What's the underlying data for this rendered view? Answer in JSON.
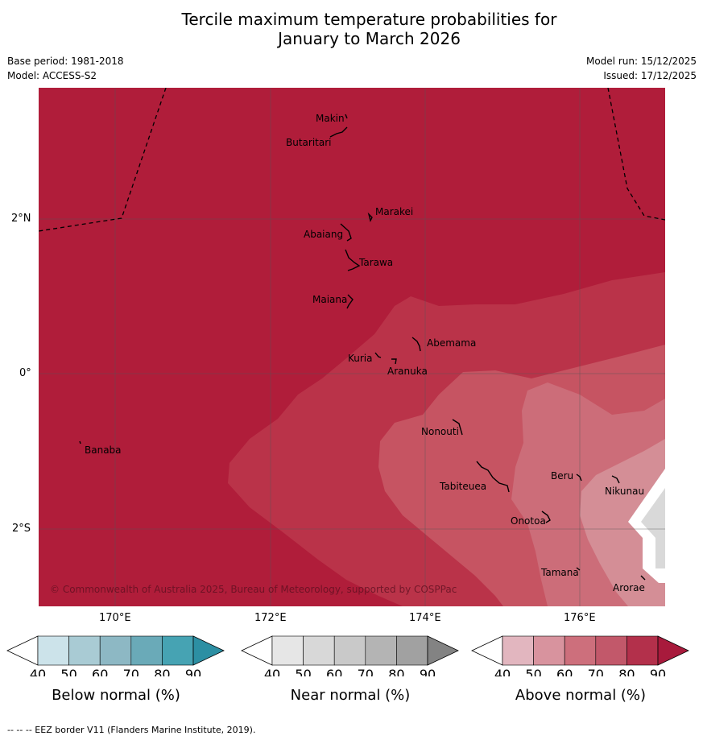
{
  "title": {
    "line1": "Tercile maximum temperature probabilities for",
    "line2": "January to March 2026"
  },
  "meta": {
    "base_period": "Base period: 1981-2018",
    "model": "Model: ACCESS-S2",
    "model_run": "Model run: 15/12/2025",
    "issued": "Issued: 17/12/2025"
  },
  "axes": {
    "lat_labels": [
      "2°N",
      "0°",
      "2°S"
    ],
    "lon_labels": [
      "170°E",
      "172°E",
      "174°E",
      "176°E"
    ]
  },
  "places": [
    "Makin",
    "Butaritari",
    "Marakei",
    "Abaiang",
    "Tarawa",
    "Maiana",
    "Abemama",
    "Kuria",
    "Aranuka",
    "Nonouti",
    "Banaba",
    "Beru",
    "Nikunau",
    "Tabiteuea",
    "Onotoa",
    "Tamana",
    "Arorae"
  ],
  "copyright": "© Commonwealth of Australia 2025, Bureau of Meteorology, supported by COSPPac",
  "colorbars": [
    {
      "label": "Below normal (%)",
      "ticks": [
        "40",
        "50",
        "60",
        "70",
        "80",
        "90"
      ],
      "colors": [
        "#cce3ea",
        "#a9cbd4",
        "#8db8c4",
        "#6aaab8",
        "#46a3b3",
        "#2c8fa3"
      ]
    },
    {
      "label": "Near normal (%)",
      "ticks": [
        "40",
        "50",
        "60",
        "70",
        "80",
        "90"
      ],
      "colors": [
        "#e6e6e6",
        "#d8d8d8",
        "#c9c9c9",
        "#b4b4b4",
        "#a1a1a1",
        "#838383"
      ]
    },
    {
      "label": "Above normal (%)",
      "ticks": [
        "40",
        "50",
        "60",
        "70",
        "80",
        "90"
      ],
      "colors": [
        "#e2b6bf",
        "#d8939e",
        "#cd6f7c",
        "#c2586a",
        "#b3304b",
        "#a81a3c"
      ]
    }
  ],
  "colors": {
    "above_90": "#b01d3a",
    "above_80": "#ba3349",
    "above_70": "#c65462",
    "above_60": "#cc6d79",
    "above_50": "#d48e96",
    "near_50": "#d9d9d9"
  },
  "footer": "--  --  -- EEZ border V11 (Flanders Marine Institute, 2019)."
}
